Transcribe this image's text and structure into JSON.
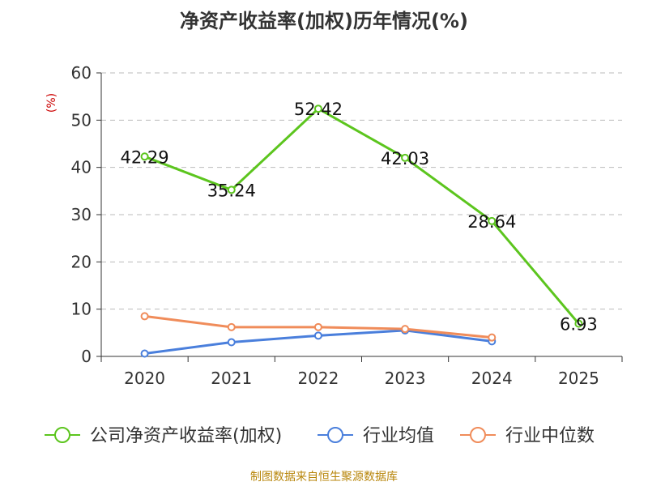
{
  "chart_data": {
    "type": "line",
    "title": "净资产收益率(加权)历年情况(%)",
    "ylabel": "(%)",
    "xlabel": "",
    "ylim": [
      0,
      60
    ],
    "yticks": [
      0,
      10,
      20,
      30,
      40,
      50,
      60
    ],
    "categories": [
      "2020",
      "2021",
      "2022",
      "2023",
      "2024",
      "2025"
    ],
    "legend_position": "bottom",
    "grid": "horizontal-dashed",
    "series": [
      {
        "name": "公司净资产收益率(加权)",
        "color": "#5cc51e",
        "show_labels": true,
        "values": [
          42.29,
          35.24,
          52.42,
          42.03,
          28.64,
          6.93
        ],
        "labels": [
          "42.29",
          "35.24",
          "52.42",
          "42.03",
          "28.64",
          "6.93"
        ]
      },
      {
        "name": "行业均值",
        "color": "#4a7fdc",
        "show_labels": false,
        "values": [
          0.6,
          3.0,
          4.4,
          5.5,
          3.2,
          null
        ]
      },
      {
        "name": "行业中位数",
        "color": "#f08c5a",
        "show_labels": false,
        "values": [
          8.5,
          6.2,
          6.2,
          5.8,
          4.0,
          null
        ]
      }
    ],
    "source": "制图数据来自恒生聚源数据库"
  }
}
